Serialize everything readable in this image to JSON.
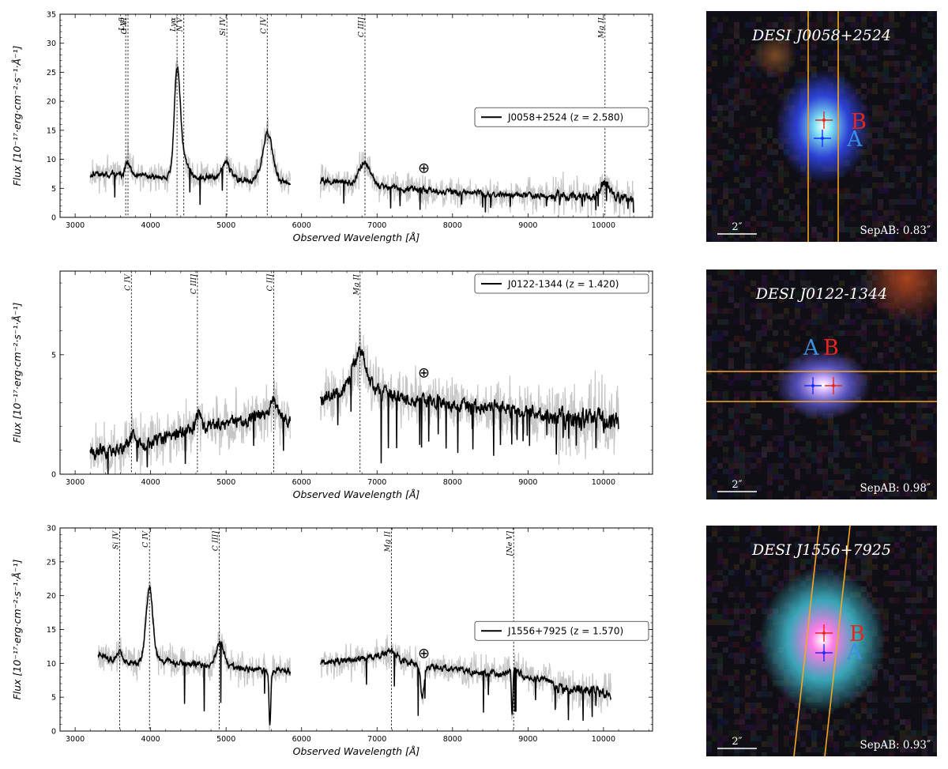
{
  "chart_data": [
    {
      "type": "line",
      "panel": "J0058+2524",
      "xlim": [
        2800,
        10650
      ],
      "ylim": [
        0,
        35
      ],
      "xticks": [
        3000,
        4000,
        5000,
        6000,
        7000,
        8000,
        9000,
        10000
      ],
      "yticks": [
        0,
        5,
        10,
        15,
        20,
        25,
        30,
        35
      ],
      "show_y_labels": true,
      "xlabel": "Observed Wavelength [Å]",
      "ylabel": "Flux [10⁻¹⁷·erg·cm⁻²·s⁻¹·Å⁻¹]",
      "legend": "J0058+2524 (z = 2.580)",
      "legend_position": "right",
      "earth_symbol": "⊕",
      "earth_x": 7620,
      "earth_y": 8.5,
      "continuum": {
        "x": [
          3200,
          3600,
          4000,
          4400,
          4800,
          5200,
          5600,
          5850,
          6250,
          7000,
          8000,
          9000,
          10000,
          10400
        ],
        "y": [
          7.5,
          7.4,
          7.0,
          7.0,
          6.9,
          6.6,
          6.2,
          6.0,
          6.4,
          5.3,
          4.3,
          3.8,
          3.4,
          3.1
        ]
      },
      "peaks": [
        {
          "x": 3700,
          "a": 2.3,
          "s": 30
        },
        {
          "x": 4350,
          "a": 17.0,
          "s": 38
        },
        {
          "x": 4420,
          "a": 4.0,
          "s": 60
        },
        {
          "x": 5000,
          "a": 2.8,
          "s": 50
        },
        {
          "x": 5550,
          "a": 8.2,
          "s": 65
        },
        {
          "x": 6840,
          "a": 4.0,
          "s": 75
        },
        {
          "x": 10020,
          "a": 2.5,
          "s": 70
        }
      ],
      "dips": [],
      "noise": {
        "raw": 1.9,
        "smooth": 0.9,
        "raw_high": 2.6,
        "high_from": 9300
      },
      "gap": [
        5850,
        6250
      ],
      "range": [
        3200,
        10400
      ],
      "seed": 11,
      "lines": [
        {
          "name": "Lyβ",
          "x": 3670
        },
        {
          "name": "O VI",
          "x": 3700
        },
        {
          "name": "Lyα",
          "x": 4350
        },
        {
          "name": "N V",
          "x": 4440
        },
        {
          "name": "Si IV",
          "x": 5010
        },
        {
          "name": "C IV",
          "x": 5545
        },
        {
          "name": "C III]",
          "x": 6840
        },
        {
          "name": "Mg II",
          "x": 10020
        }
      ]
    },
    {
      "type": "line",
      "panel": "J0122-1344",
      "xlim": [
        2800,
        10650
      ],
      "ylim": [
        0,
        8.5
      ],
      "xticks": [
        3000,
        4000,
        5000,
        6000,
        7000,
        8000,
        9000,
        10000
      ],
      "yticks": [
        0,
        5
      ],
      "show_y_labels": true,
      "xlabel": "Observed Wavelength [Å]",
      "ylabel": "Flux [10⁻¹⁷·erg·cm⁻²·s⁻¹·Å⁻¹]",
      "legend": "J0122-1344 (z = 1.420)",
      "legend_position": "top-right",
      "earth_symbol": "⊕",
      "earth_x": 7620,
      "earth_y": 4.25,
      "continuum": {
        "x": [
          3200,
          3600,
          4000,
          4600,
          5200,
          5600,
          5850,
          6250,
          6700,
          7200,
          8000,
          9000,
          9350,
          9400,
          10000,
          10200
        ],
        "y": [
          1.0,
          1.0,
          1.3,
          1.9,
          2.2,
          2.5,
          2.3,
          3.2,
          3.7,
          3.3,
          2.9,
          2.6,
          2.4,
          2.4,
          2.2,
          2.1
        ]
      },
      "peaks": [
        {
          "x": 3750,
          "a": 0.6,
          "s": 40
        },
        {
          "x": 4630,
          "a": 0.5,
          "s": 50
        },
        {
          "x": 5630,
          "a": 0.6,
          "s": 50
        },
        {
          "x": 6780,
          "a": 1.4,
          "s": 80
        }
      ],
      "dips": [],
      "noise": {
        "raw": 0.85,
        "smooth": 0.5,
        "raw_high": 1.2,
        "high_from": 9350
      },
      "gap": [
        5850,
        6250
      ],
      "range": [
        3200,
        10200
      ],
      "seed": 23,
      "lines": [
        {
          "name": "C IV",
          "x": 3745
        },
        {
          "name": "C III]",
          "x": 4620
        },
        {
          "name": "C II]",
          "x": 5630
        },
        {
          "name": "Mg II",
          "x": 6775
        }
      ]
    },
    {
      "type": "line",
      "panel": "J1556+7925",
      "xlim": [
        2800,
        10650
      ],
      "ylim": [
        0,
        30
      ],
      "xticks": [
        3000,
        4000,
        5000,
        6000,
        7000,
        8000,
        9000,
        10000
      ],
      "yticks": [
        0,
        5,
        10,
        15,
        20,
        25,
        30
      ],
      "show_y_labels": true,
      "xlabel": "Observed Wavelength [Å]",
      "ylabel": "Flux [10⁻¹⁷·erg·cm⁻²·s⁻¹·Å⁻¹]",
      "legend": "J1556+7925 (z = 1.570)",
      "legend_position": "right",
      "earth_symbol": "⊕",
      "earth_x": 7620,
      "earth_y": 11.5,
      "continuum": {
        "x": [
          3300,
          3600,
          4000,
          4500,
          5000,
          5500,
          5850,
          6250,
          7000,
          7200,
          8000,
          9000,
          9300,
          9350,
          10100
        ],
        "y": [
          11.5,
          10.0,
          10.5,
          10.0,
          9.5,
          9.0,
          9.0,
          10.0,
          11.0,
          10.5,
          9.0,
          8.0,
          7.5,
          6.5,
          5.5
        ]
      },
      "peaks": [
        {
          "x": 3590,
          "a": 1.5,
          "s": 40
        },
        {
          "x": 3985,
          "a": 10.5,
          "s": 45
        },
        {
          "x": 4920,
          "a": 3.5,
          "s": 50
        },
        {
          "x": 7190,
          "a": 1.2,
          "s": 80
        },
        {
          "x": 8810,
          "a": 1.2,
          "s": 60
        }
      ],
      "dips": [
        {
          "x": 5580,
          "a": 8.0,
          "s": 12
        },
        {
          "x": 7600,
          "a": 5.0,
          "s": 22
        },
        {
          "x": 8790,
          "a": 7.0,
          "s": 10
        }
      ],
      "noise": {
        "raw": 1.8,
        "smooth": 0.8,
        "raw_high": 2.4,
        "high_from": 9350
      },
      "gap": [
        5850,
        6250
      ],
      "range": [
        3300,
        10100
      ],
      "seed": 37,
      "lines": [
        {
          "name": "Si IV",
          "x": 3590
        },
        {
          "name": "C IV",
          "x": 3985
        },
        {
          "name": "C III]",
          "x": 4910
        },
        {
          "name": "Mg II",
          "x": 7190
        },
        {
          "name": "[Ne V]",
          "x": 8810
        }
      ]
    }
  ],
  "cutouts": [
    {
      "title": "DESI J0058+2524",
      "separation": "SepAB: 0.83″",
      "scale_label": "2″",
      "label_a": "A",
      "label_b": "B",
      "slit": "vertical",
      "colors": {
        "core": "#7fe3f2",
        "halo": "#2f45e8",
        "background": "#0f0e14",
        "slit": "#f5a623"
      }
    },
    {
      "title": "DESI J0122-1344",
      "separation": "SepAB: 0.98″",
      "scale_label": "2″",
      "label_a": "A",
      "label_b": "B",
      "slit": "horizontal",
      "colors": {
        "core": "#d6b7ff",
        "halo": "#5a55c8",
        "background": "#0f0e14",
        "slit": "#f5a623"
      }
    },
    {
      "title": "DESI J1556+7925",
      "separation": "SepAB: 0.93″",
      "scale_label": "2″",
      "label_a": "A",
      "label_b": "B",
      "slit": "tilted",
      "colors": {
        "core": "#ff7ae6",
        "halo": "#3db6c9",
        "background": "#0f0e14",
        "slit": "#f5a623"
      }
    }
  ]
}
